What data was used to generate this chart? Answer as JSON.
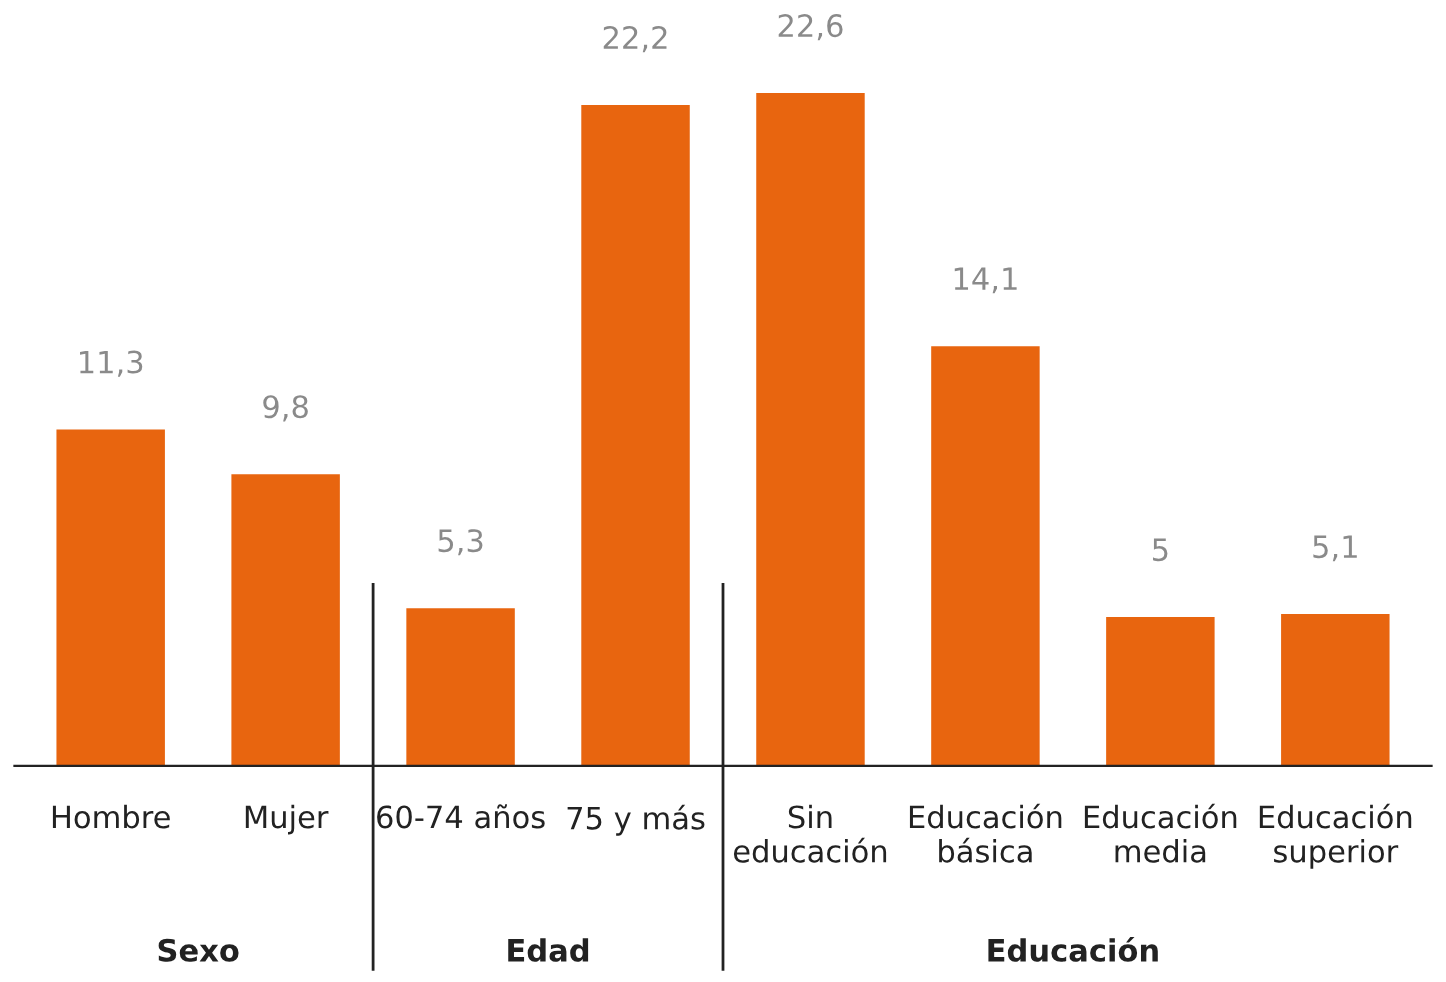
{
  "chart_data": {
    "type": "bar",
    "categories": [
      "Hombre",
      "Mujer",
      "60-74 años",
      "75 y más",
      "Sin\neducación",
      "Educación\nbásica",
      "Educación\nmedia",
      "Educación\nsuperior"
    ],
    "values": [
      11.3,
      9.8,
      5.3,
      22.2,
      22.6,
      14.1,
      5,
      5.1
    ],
    "value_labels": [
      "11,3",
      "9,8",
      "5,3",
      "22,2",
      "22,6",
      "14,1",
      "5",
      "5,1"
    ],
    "color": "#e8650f",
    "annotations": [
      "Sexo",
      "Edad",
      "Educación"
    ],
    "grid": false,
    "legend": false
  }
}
